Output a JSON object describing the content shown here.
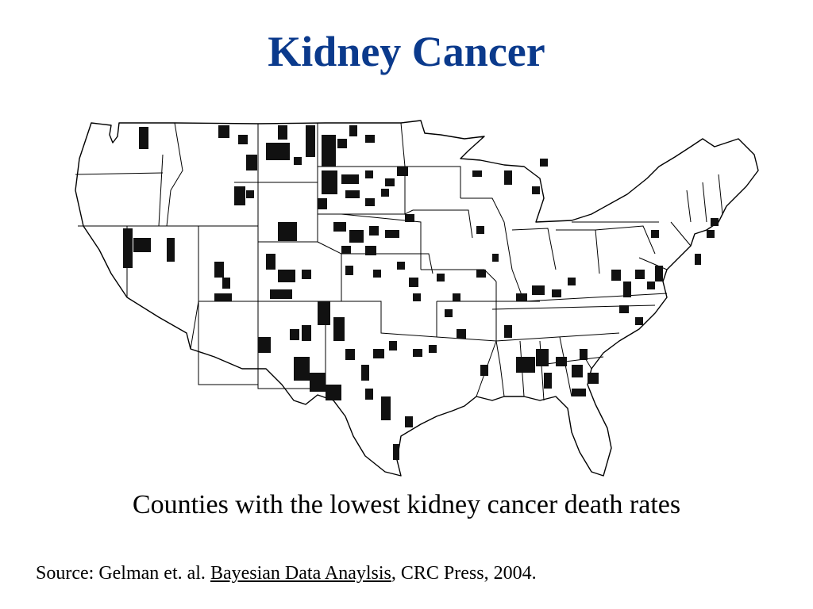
{
  "slide": {
    "title": "Kidney Cancer",
    "caption": "Counties with the lowest kidney cancer death rates",
    "source": {
      "prefix": "Source: Gelman et. al. ",
      "book": "Bayesian Data Anaylsis",
      "suffix": ", CRC Press, 2004."
    }
  },
  "colors": {
    "title": "#0b3a8c",
    "highlight": "#111111",
    "text": "#000000"
  }
}
